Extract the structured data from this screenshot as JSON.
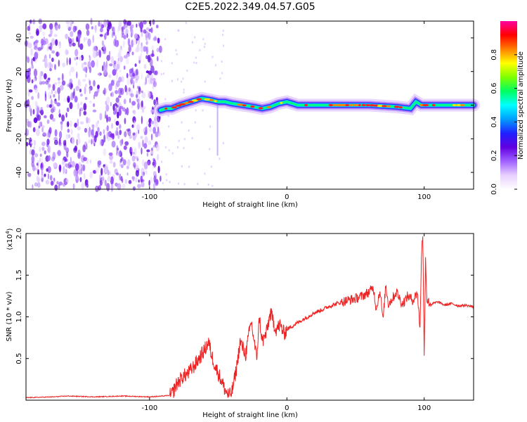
{
  "title": "C2E5.2022.349.04.57.G05",
  "chart_data": [
    {
      "type": "heatmap",
      "xlabel": "Height of straight line (km)",
      "ylabel": "Frequency (Hz)",
      "xlim": [
        -190,
        136
      ],
      "ylim": [
        -50,
        50
      ],
      "xticks": [
        -100,
        0,
        100
      ],
      "yticks": [
        -40,
        -20,
        0,
        20,
        40
      ],
      "colorbar": {
        "label": "Normalized spectral amplitude",
        "range": [
          0,
          1
        ],
        "ticks": [
          "0.0",
          "0.2",
          "0.4",
          "0.6",
          "0.8"
        ],
        "colormap": [
          "#ffffff",
          "#e8d0ff",
          "#a060ff",
          "#6000e0",
          "#2020ff",
          "#00a0ff",
          "#00ffff",
          "#00ff60",
          "#80ff00",
          "#ffff00",
          "#ff8000",
          "#ff0000",
          "#ff00a0"
        ]
      },
      "ridge": {
        "x": [
          -92,
          -88,
          -84,
          -78,
          -70,
          -62,
          -55,
          -50,
          -45,
          -40,
          -32,
          -24,
          -18,
          -12,
          -6,
          0,
          8,
          20,
          40,
          60,
          80,
          90,
          94,
          98,
          110,
          136
        ],
        "frequency_hz": [
          -3,
          -2,
          -2,
          0,
          2,
          4,
          3,
          2,
          2,
          1,
          0,
          -1,
          -2,
          -1,
          1,
          2,
          0,
          0,
          0,
          0,
          -1,
          -2,
          2,
          0,
          0,
          0
        ],
        "noise_region_x": [
          -190,
          -92
        ]
      }
    },
    {
      "type": "line",
      "xlabel": "Height of straight line (km)",
      "ylabel": "SNR (10 * v/v)",
      "yscale_label": "(x10",
      "yscale_exponent": "4",
      "xlim": [
        -190,
        136
      ],
      "ylim": [
        0,
        2.0
      ],
      "xticks": [
        -100,
        0,
        100
      ],
      "yticks": [
        "0.5",
        "1.0",
        "1.5",
        "2.0"
      ],
      "color": "#ee2222",
      "series": [
        {
          "x": [
            -190,
            -170,
            -160,
            -140,
            -120,
            -100,
            -90,
            -84,
            -80,
            -76,
            -72,
            -68,
            -64,
            -60,
            -57,
            -55,
            -52,
            -48,
            -45,
            -42,
            -40,
            -37,
            -34,
            -30,
            -26,
            -22,
            -20,
            -18,
            -15,
            -12,
            -8,
            -5,
            -2,
            0,
            5,
            10,
            15,
            20,
            25,
            30,
            35,
            40,
            45,
            50,
            55,
            60,
            63,
            65,
            68,
            70,
            72,
            74,
            76,
            80,
            84,
            88,
            92,
            95,
            97,
            98,
            99,
            100,
            101,
            102,
            105,
            110,
            115,
            120,
            125,
            130,
            136
          ],
          "values": [
            0.03,
            0.04,
            0.05,
            0.04,
            0.05,
            0.04,
            0.05,
            0.06,
            0.2,
            0.28,
            0.32,
            0.4,
            0.5,
            0.6,
            0.7,
            0.55,
            0.4,
            0.25,
            0.12,
            0.05,
            0.1,
            0.35,
            0.7,
            0.55,
            0.95,
            0.5,
            1.0,
            0.7,
            0.8,
            1.05,
            0.85,
            0.9,
            0.8,
            0.85,
            0.9,
            0.95,
            1.0,
            1.05,
            1.08,
            1.12,
            1.15,
            1.18,
            1.2,
            1.22,
            1.25,
            1.3,
            1.35,
            1.1,
            1.32,
            0.95,
            1.38,
            1.15,
            1.2,
            1.3,
            1.15,
            1.25,
            1.2,
            1.3,
            0.85,
            1.75,
            2.0,
            0.5,
            1.7,
            1.2,
            1.15,
            1.18,
            1.14,
            1.16,
            1.13,
            1.14,
            1.12
          ]
        }
      ]
    }
  ]
}
